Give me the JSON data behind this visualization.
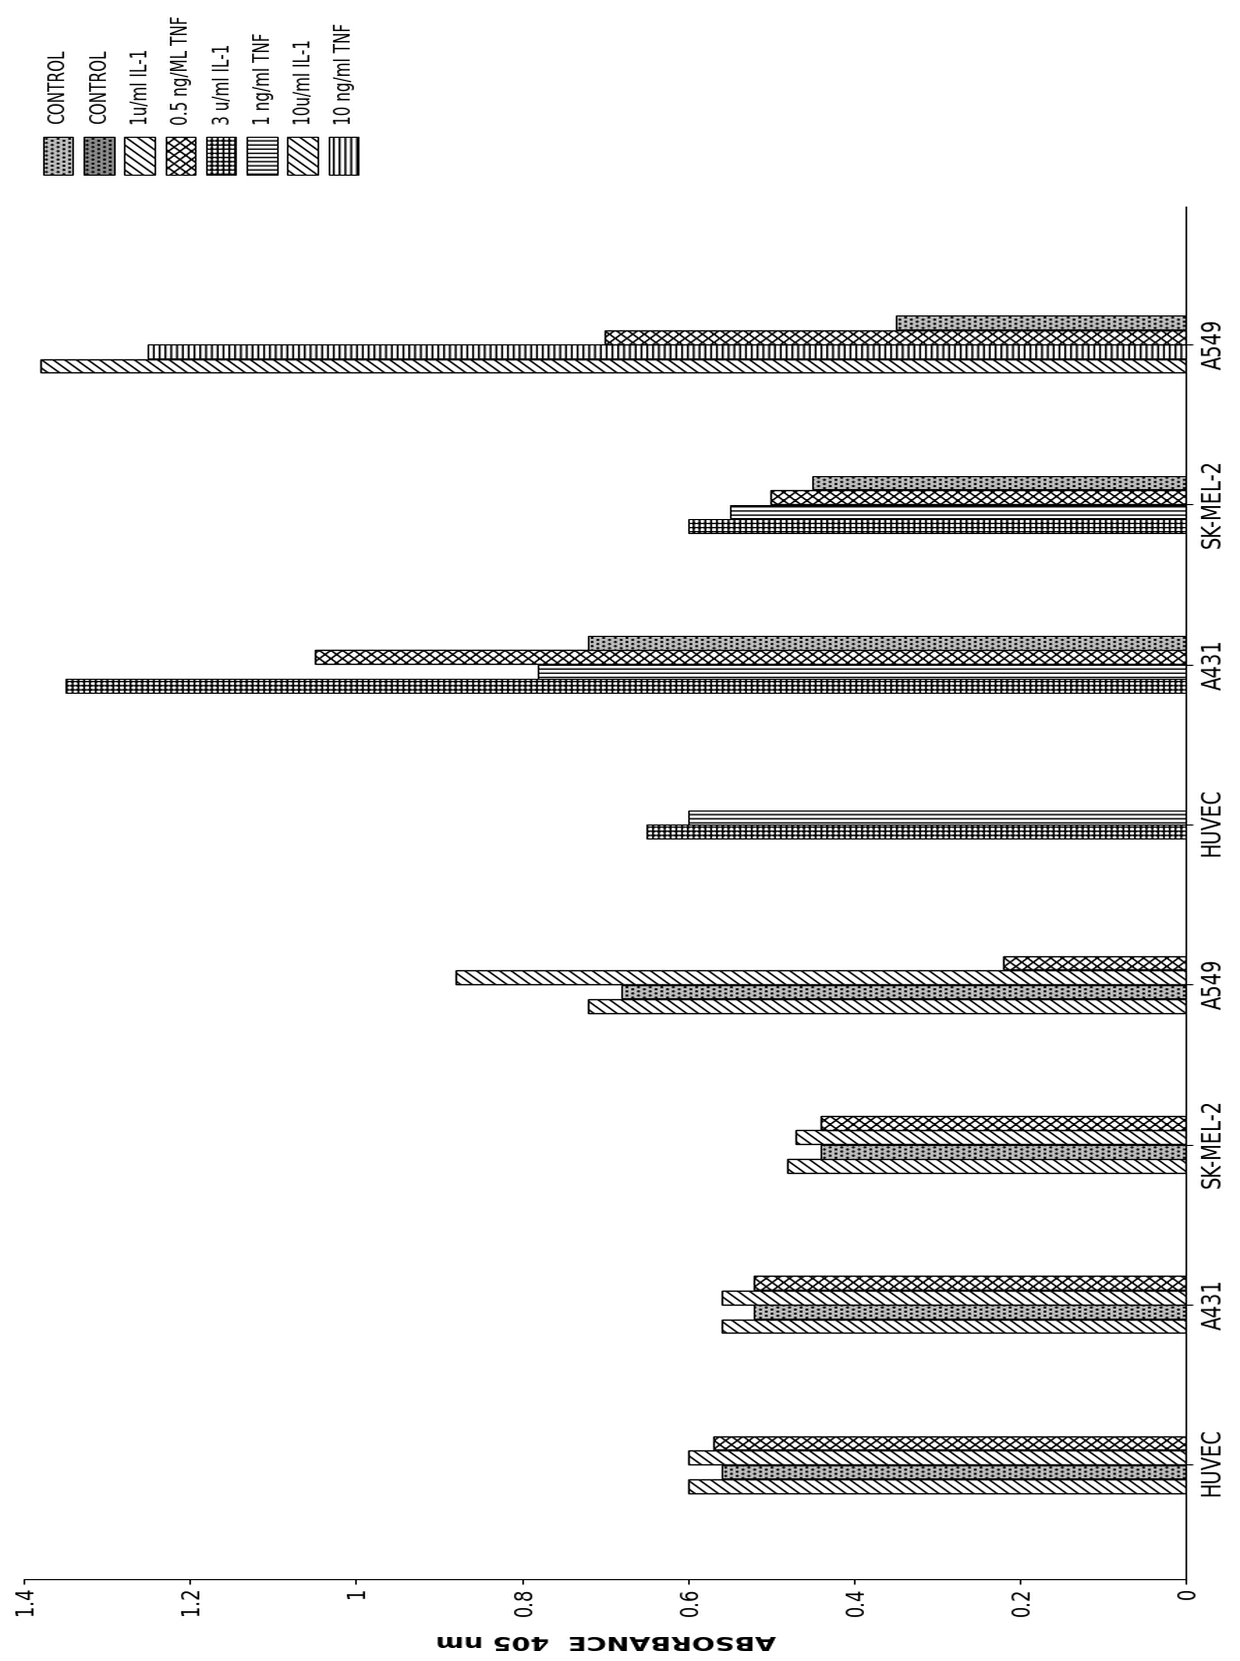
{
  "ylabel": "ABSORBANCE  405 nm",
  "ylim": [
    0,
    1.4
  ],
  "yticks": [
    0,
    0.2,
    0.4,
    0.6,
    0.8,
    1.0,
    1.2,
    1.4
  ],
  "bar_width": 0.12,
  "groups": [
    {
      "label": "HUVEC",
      "x": 1.0,
      "bars": [
        {
          "v": 0.6,
          "hatch": "////",
          "fc": "white",
          "ec": "black",
          "lw": 1.0
        },
        {
          "v": 0.56,
          "hatch": "....",
          "fc": "#bbbbbb",
          "ec": "black",
          "lw": 0.8
        },
        {
          "v": 0.6,
          "hatch": "////",
          "fc": "white",
          "ec": "black",
          "lw": 1.0
        },
        {
          "v": 0.57,
          "hatch": "xxxx",
          "fc": "white",
          "ec": "black",
          "lw": 1.0
        }
      ]
    },
    {
      "label": "A431",
      "x": 2.4,
      "bars": [
        {
          "v": 0.56,
          "hatch": "////",
          "fc": "white",
          "ec": "black",
          "lw": 1.0
        },
        {
          "v": 0.52,
          "hatch": "....",
          "fc": "#bbbbbb",
          "ec": "black",
          "lw": 0.8
        },
        {
          "v": 0.56,
          "hatch": "////",
          "fc": "white",
          "ec": "black",
          "lw": 1.0
        },
        {
          "v": 0.52,
          "hatch": "xxxx",
          "fc": "white",
          "ec": "black",
          "lw": 1.0
        }
      ]
    },
    {
      "label": "SK-MEL-2",
      "x": 3.8,
      "bars": [
        {
          "v": 0.48,
          "hatch": "////",
          "fc": "white",
          "ec": "black",
          "lw": 1.0
        },
        {
          "v": 0.44,
          "hatch": "....",
          "fc": "#bbbbbb",
          "ec": "black",
          "lw": 0.8
        },
        {
          "v": 0.47,
          "hatch": "////",
          "fc": "white",
          "ec": "black",
          "lw": 1.0
        },
        {
          "v": 0.44,
          "hatch": "xxxx",
          "fc": "white",
          "ec": "black",
          "lw": 1.0
        }
      ]
    },
    {
      "label": "A549",
      "x": 5.2,
      "bars": [
        {
          "v": 0.72,
          "hatch": "////",
          "fc": "white",
          "ec": "black",
          "lw": 1.0
        },
        {
          "v": 0.68,
          "hatch": "....",
          "fc": "#bbbbbb",
          "ec": "black",
          "lw": 0.8
        },
        {
          "v": 0.88,
          "hatch": "////",
          "fc": "white",
          "ec": "black",
          "lw": 1.0
        },
        {
          "v": 0.22,
          "hatch": "xxxx",
          "fc": "white",
          "ec": "black",
          "lw": 1.0
        }
      ]
    },
    {
      "label": "HUVEC",
      "x": 6.6,
      "bars": [
        {
          "v": 0.65,
          "hatch": "++++",
          "fc": "white",
          "ec": "black",
          "lw": 0.8
        },
        {
          "v": 0.6,
          "hatch": "||||",
          "fc": "white",
          "ec": "black",
          "lw": 0.8
        }
      ]
    },
    {
      "label": "A431",
      "x": 8.0,
      "bars": [
        {
          "v": 1.35,
          "hatch": "++++",
          "fc": "white",
          "ec": "black",
          "lw": 0.8
        },
        {
          "v": 0.78,
          "hatch": "||||",
          "fc": "white",
          "ec": "black",
          "lw": 0.8
        },
        {
          "v": 1.05,
          "hatch": "xxxx",
          "fc": "white",
          "ec": "black",
          "lw": 1.0
        },
        {
          "v": 0.72,
          "hatch": "....",
          "fc": "#bbbbbb",
          "ec": "black",
          "lw": 0.8
        }
      ]
    },
    {
      "label": "SK-MEL-2",
      "x": 9.4,
      "bars": [
        {
          "v": 0.6,
          "hatch": "++++",
          "fc": "white",
          "ec": "black",
          "lw": 0.8
        },
        {
          "v": 0.55,
          "hatch": "||||",
          "fc": "white",
          "ec": "black",
          "lw": 0.8
        },
        {
          "v": 0.5,
          "hatch": "xxxx",
          "fc": "white",
          "ec": "black",
          "lw": 1.0
        },
        {
          "v": 0.45,
          "hatch": "....",
          "fc": "#bbbbbb",
          "ec": "black",
          "lw": 0.8
        }
      ]
    },
    {
      "label": "A549",
      "x": 10.8,
      "bars": [
        {
          "v": 1.38,
          "hatch": "////",
          "fc": "white",
          "ec": "black",
          "lw": 1.0
        },
        {
          "v": 1.25,
          "hatch": "----",
          "fc": "white",
          "ec": "black",
          "lw": 0.8
        },
        {
          "v": 0.7,
          "hatch": "xxxx",
          "fc": "white",
          "ec": "black",
          "lw": 1.0
        },
        {
          "v": 0.35,
          "hatch": "....",
          "fc": "#bbbbbb",
          "ec": "black",
          "lw": 0.8
        }
      ]
    }
  ],
  "legend_entries": [
    {
      "label": "CONTROL",
      "hatch": "....",
      "fc": "#bbbbbb",
      "ec": "black"
    },
    {
      "label": "CONTROL",
      "hatch": "....",
      "fc": "#888888",
      "ec": "black"
    },
    {
      "label": "1u/ml IL-1",
      "hatch": "////",
      "fc": "white",
      "ec": "black"
    },
    {
      "label": "0.5 ng/ML TNF",
      "hatch": "xxxx",
      "fc": "white",
      "ec": "black"
    },
    {
      "label": "3 u/ml IL-1",
      "hatch": "++++",
      "fc": "white",
      "ec": "black"
    },
    {
      "label": "1 ng/ml TNF",
      "hatch": "||||",
      "fc": "white",
      "ec": "black"
    },
    {
      "label": "10u/ml IL-1",
      "hatch": "////",
      "fc": "white",
      "ec": "black"
    },
    {
      "label": "10 ng/ml TNF",
      "hatch": "----",
      "fc": "white",
      "ec": "black"
    }
  ]
}
